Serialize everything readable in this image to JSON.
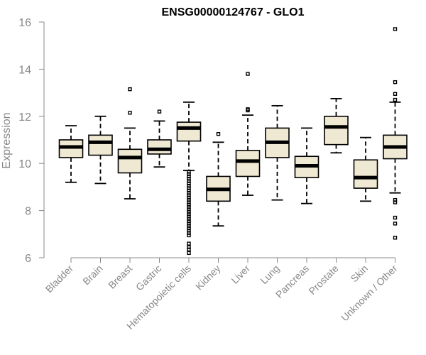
{
  "chart_data": {
    "type": "boxplot",
    "title": "ENSG00000124767 - GLO1",
    "ylabel": "Expression",
    "xlabel": "",
    "ylim": [
      6,
      16
    ],
    "yticks": [
      6,
      8,
      10,
      12,
      14,
      16
    ],
    "grid": false,
    "colors": {
      "box_fill": "#efe8d2",
      "axis": "#888888",
      "text": "#888888"
    },
    "categories": [
      "Bladder",
      "Brain",
      "Breast",
      "Gastric",
      "Hematopoietic cells",
      "Kidney",
      "Liver",
      "Lung",
      "Pancreas",
      "Prostate",
      "Skin",
      "Unknown / Other"
    ],
    "boxes": [
      {
        "category": "Bladder",
        "whisker_low": 9.2,
        "q1": 10.25,
        "median": 10.7,
        "q3": 11.0,
        "whisker_high": 11.6,
        "outliers": []
      },
      {
        "category": "Brain",
        "whisker_low": 9.15,
        "q1": 10.35,
        "median": 10.9,
        "q3": 11.2,
        "whisker_high": 12.0,
        "outliers": []
      },
      {
        "category": "Breast",
        "whisker_low": 8.5,
        "q1": 9.6,
        "median": 10.25,
        "q3": 10.6,
        "whisker_high": 11.5,
        "outliers": [
          12.15,
          13.15
        ]
      },
      {
        "category": "Gastric",
        "whisker_low": 9.85,
        "q1": 10.4,
        "median": 10.6,
        "q3": 11.0,
        "whisker_high": 11.8,
        "outliers": [
          12.2
        ]
      },
      {
        "category": "Hematopoietic cells",
        "whisker_low": 9.7,
        "q1": 10.95,
        "median": 11.5,
        "q3": 11.75,
        "whisker_high": 12.6,
        "outliers": [
          9.65,
          9.55,
          9.45,
          9.35,
          9.25,
          9.15,
          9.05,
          8.95,
          8.85,
          8.75,
          8.65,
          8.55,
          8.45,
          8.35,
          8.25,
          8.15,
          8.05,
          7.95,
          7.85,
          7.75,
          7.65,
          7.55,
          7.45,
          7.35,
          7.25,
          7.15,
          7.05,
          6.95,
          6.6,
          6.45,
          6.35,
          6.2
        ]
      },
      {
        "category": "Kidney",
        "whisker_low": 7.35,
        "q1": 8.4,
        "median": 8.9,
        "q3": 9.45,
        "whisker_high": 10.9,
        "outliers": [
          11.25
        ]
      },
      {
        "category": "Liver",
        "whisker_low": 8.65,
        "q1": 9.45,
        "median": 10.1,
        "q3": 10.55,
        "whisker_high": 12.05,
        "outliers": [
          12.25,
          12.3,
          13.8
        ]
      },
      {
        "category": "Lung",
        "whisker_low": 8.45,
        "q1": 10.25,
        "median": 10.9,
        "q3": 11.5,
        "whisker_high": 12.45,
        "outliers": []
      },
      {
        "category": "Pancreas",
        "whisker_low": 8.3,
        "q1": 9.4,
        "median": 9.9,
        "q3": 10.3,
        "whisker_high": 11.5,
        "outliers": []
      },
      {
        "category": "Prostate",
        "whisker_low": 10.45,
        "q1": 10.8,
        "median": 11.55,
        "q3": 12.0,
        "whisker_high": 12.75,
        "outliers": []
      },
      {
        "category": "Skin",
        "whisker_low": 8.4,
        "q1": 8.95,
        "median": 9.4,
        "q3": 10.15,
        "whisker_high": 11.1,
        "outliers": []
      },
      {
        "category": "Unknown / Other",
        "whisker_low": 8.75,
        "q1": 10.2,
        "median": 10.7,
        "q3": 11.2,
        "whisker_high": 12.6,
        "outliers": [
          6.85,
          7.45,
          7.7,
          8.35,
          8.45,
          12.7,
          12.95,
          13.45,
          15.7
        ]
      }
    ]
  }
}
